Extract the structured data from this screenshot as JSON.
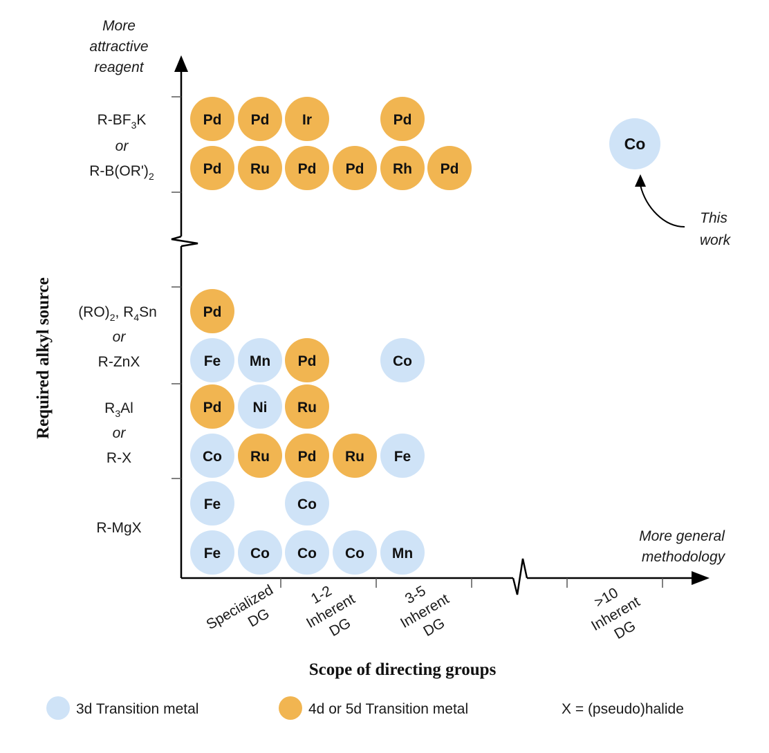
{
  "colors": {
    "d3": "#cfe3f7",
    "d45": "#f1b551"
  },
  "y_axis": {
    "label": "Required alkyl source",
    "top_label": [
      "More",
      "attractive",
      "reagent"
    ],
    "row_labels": [
      {
        "lines": [
          "R-BF",
          "or",
          "R-B(OR')"
        ],
        "sub": [
          "3",
          "",
          "2"
        ],
        "suffix": [
          "K",
          "",
          ""
        ]
      },
      {
        "lines": [
          "(RO)",
          "or",
          "R-ZnX"
        ],
        "extra": ", R",
        "sub_a": "2",
        "sub_b": "4",
        "tail": "Sn"
      },
      {
        "lines": [
          "R",
          "or",
          "R-X"
        ],
        "sub": "3",
        "tail": "Al"
      },
      {
        "lines": [
          "R-MgX"
        ]
      }
    ]
  },
  "x_axis": {
    "label": "Scope of directing groups",
    "end_label": [
      "More general",
      "methodology"
    ],
    "categories": [
      {
        "lines": [
          "Specialized",
          "DG"
        ]
      },
      {
        "lines": [
          "1-2",
          "Inherent",
          "DG"
        ]
      },
      {
        "lines": [
          "3-5",
          "Inherent",
          "DG"
        ]
      },
      {
        "lines": [
          ">10",
          "Inherent",
          "DG"
        ]
      }
    ]
  },
  "metals": [
    {
      "label": "Pd",
      "type": "d45",
      "col": 0,
      "row": 0
    },
    {
      "label": "Pd",
      "type": "d45",
      "col": 1,
      "row": 0
    },
    {
      "label": "Ir",
      "type": "d45",
      "col": 2,
      "row": 0
    },
    {
      "label": "Pd",
      "type": "d45",
      "col": 4,
      "row": 0
    },
    {
      "label": "Pd",
      "type": "d45",
      "col": 0,
      "row": 1
    },
    {
      "label": "Ru",
      "type": "d45",
      "col": 1,
      "row": 1
    },
    {
      "label": "Pd",
      "type": "d45",
      "col": 2,
      "row": 1
    },
    {
      "label": "Pd",
      "type": "d45",
      "col": 3,
      "row": 1
    },
    {
      "label": "Rh",
      "type": "d45",
      "col": 4,
      "row": 1
    },
    {
      "label": "Pd",
      "type": "d45",
      "col": 5,
      "row": 1
    },
    {
      "label": "Pd",
      "type": "d45",
      "col": 0,
      "row": 2
    },
    {
      "label": "Fe",
      "type": "d3",
      "col": 0,
      "row": 3
    },
    {
      "label": "Mn",
      "type": "d3",
      "col": 1,
      "row": 3
    },
    {
      "label": "Pd",
      "type": "d45",
      "col": 2,
      "row": 3
    },
    {
      "label": "Co",
      "type": "d3",
      "col": 4,
      "row": 3
    },
    {
      "label": "Pd",
      "type": "d45",
      "col": 0,
      "row": 4
    },
    {
      "label": "Ni",
      "type": "d3",
      "col": 1,
      "row": 4
    },
    {
      "label": "Ru",
      "type": "d45",
      "col": 2,
      "row": 4
    },
    {
      "label": "Co",
      "type": "d3",
      "col": 0,
      "row": 5
    },
    {
      "label": "Ru",
      "type": "d45",
      "col": 1,
      "row": 5
    },
    {
      "label": "Pd",
      "type": "d45",
      "col": 2,
      "row": 5
    },
    {
      "label": "Ru",
      "type": "d45",
      "col": 3,
      "row": 5
    },
    {
      "label": "Fe",
      "type": "d3",
      "col": 4,
      "row": 5
    },
    {
      "label": "Fe",
      "type": "d3",
      "col": 0,
      "row": 6
    },
    {
      "label": "Co",
      "type": "d3",
      "col": 2,
      "row": 6
    },
    {
      "label": "Fe",
      "type": "d3",
      "col": 0,
      "row": 7
    },
    {
      "label": "Co",
      "type": "d3",
      "col": 1,
      "row": 7
    },
    {
      "label": "Co",
      "type": "d3",
      "col": 2,
      "row": 7
    },
    {
      "label": "Co",
      "type": "d3",
      "col": 3,
      "row": 7
    },
    {
      "label": "Mn",
      "type": "d3",
      "col": 4,
      "row": 7
    }
  ],
  "this_work": {
    "metal": "Co",
    "type": "d3",
    "note": [
      "This",
      "work"
    ]
  },
  "legend": {
    "d3": "3d Transition metal",
    "d45": "4d or 5d Transition metal",
    "x_note": "X = (pseudo)halide"
  }
}
